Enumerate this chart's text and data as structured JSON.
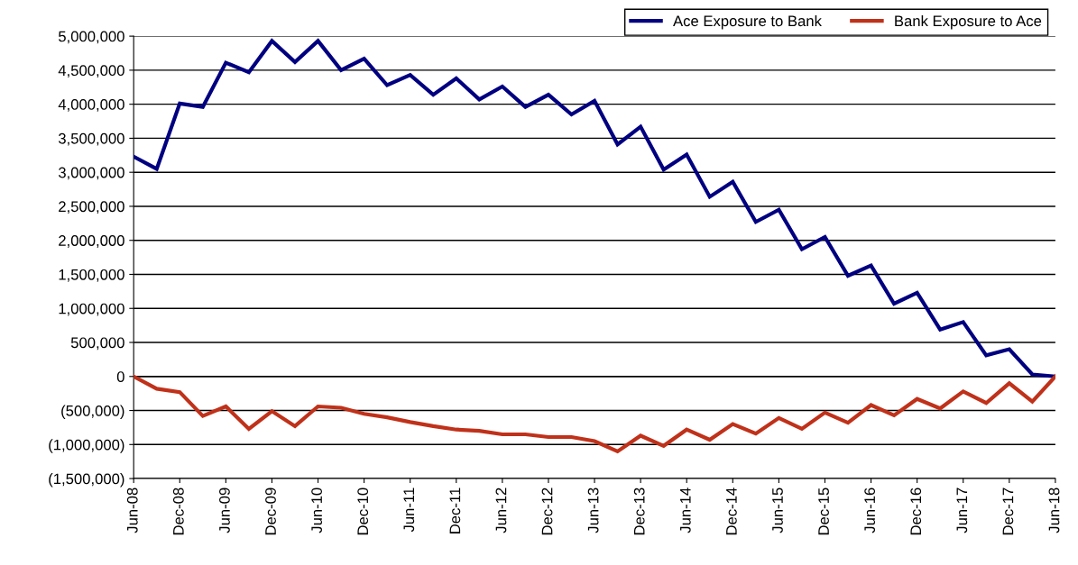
{
  "chart_data": {
    "type": "line",
    "categories": [
      "Jun-08",
      null,
      "Dec-08",
      null,
      "Jun-09",
      null,
      "Dec-09",
      null,
      "Jun-10",
      null,
      "Dec-10",
      null,
      "Jun-11",
      null,
      "Dec-11",
      null,
      "Jun-12",
      null,
      "Dec-12",
      null,
      "Jun-13",
      null,
      "Dec-13",
      null,
      "Jun-14",
      null,
      "Dec-14",
      null,
      "Jun-15",
      null,
      "Dec-15",
      null,
      "Jun-16",
      null,
      "Dec-16",
      null,
      "Jun-17",
      null,
      "Dec-17",
      null,
      "Jun-18"
    ],
    "series": [
      {
        "name": "Ace Exposure to Bank",
        "color": "#000080",
        "values": [
          3230000,
          3050000,
          4010000,
          3960000,
          4610000,
          4470000,
          4930000,
          4620000,
          4930000,
          4500000,
          4670000,
          4280000,
          4430000,
          4140000,
          4380000,
          4070000,
          4260000,
          3960000,
          4140000,
          3850000,
          4050000,
          3410000,
          3670000,
          3040000,
          3260000,
          2640000,
          2860000,
          2270000,
          2450000,
          1870000,
          2050000,
          1480000,
          1630000,
          1070000,
          1230000,
          690000,
          800000,
          310000,
          400000,
          30000,
          0
        ]
      },
      {
        "name": "Bank Exposure to Ace",
        "color": "#c0311a",
        "values": [
          0,
          -180000,
          -230000,
          -580000,
          -440000,
          -770000,
          -510000,
          -730000,
          -440000,
          -460000,
          -550000,
          -600000,
          -670000,
          -730000,
          -780000,
          -800000,
          -850000,
          -850000,
          -890000,
          -890000,
          -950000,
          -1100000,
          -870000,
          -1020000,
          -780000,
          -930000,
          -700000,
          -840000,
          -610000,
          -770000,
          -530000,
          -680000,
          -420000,
          -570000,
          -330000,
          -470000,
          -220000,
          -390000,
          -100000,
          -370000,
          0
        ]
      }
    ],
    "ylim": [
      -1500000,
      5000000
    ],
    "yticks": [
      {
        "value": -1500000,
        "label": "(1,500,000)"
      },
      {
        "value": -1000000,
        "label": "(1,000,000)"
      },
      {
        "value": -500000,
        "label": "(500,000)"
      },
      0,
      {
        "value": 500000,
        "label": "500,000"
      },
      {
        "value": 1000000,
        "label": "1,000,000"
      },
      {
        "value": 1500000,
        "label": "1,500,000"
      },
      {
        "value": 2000000,
        "label": "2,000,000"
      },
      {
        "value": 2500000,
        "label": "2,500,000"
      },
      {
        "value": 3000000,
        "label": "3,000,000"
      },
      {
        "value": 3500000,
        "label": "3,500,000"
      },
      {
        "value": 4000000,
        "label": "4,000,000"
      },
      {
        "value": 4500000,
        "label": "4,500,000"
      },
      {
        "value": 5000000,
        "label": "5,000,000"
      }
    ],
    "grid": "y",
    "legend": "top right",
    "marker": "none",
    "line_style": "solid"
  }
}
